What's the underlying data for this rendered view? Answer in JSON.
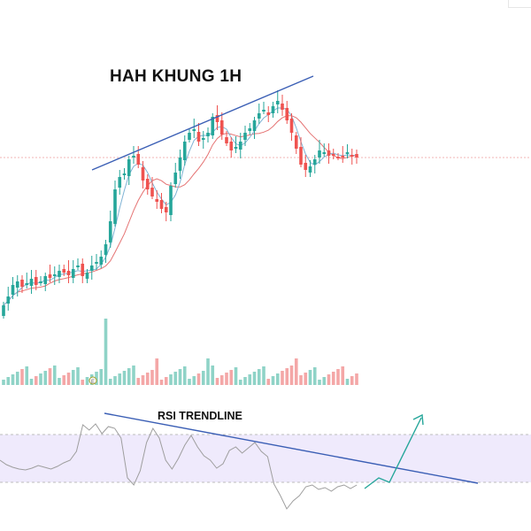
{
  "chart_data": [
    {
      "type": "candlestick",
      "title": "HAH KHUNG 1H",
      "annotations": [
        "HAH KHUNG 1H"
      ],
      "colors": {
        "up": "#26a69a",
        "down": "#ef5350",
        "ma_fast": "#7fb3d5",
        "ma_slow": "#e57373",
        "trendline": "#3b5fb5"
      },
      "grid": false,
      "legend": "none"
    },
    {
      "type": "bar",
      "title": "",
      "annotations": [],
      "colors": {
        "up": "#8fd3c7",
        "down": "#f4a7a7"
      },
      "marker_label": "E"
    },
    {
      "type": "line",
      "title": "RSI TRENDLINE",
      "annotations": [
        "RSI TRENDLINE"
      ],
      "colors": {
        "rsi": "#9e9e9e",
        "band": "#efeafc",
        "trendline": "#3b5fb5",
        "projection": "#26a69a"
      },
      "grid": false,
      "legend": "none"
    }
  ]
}
